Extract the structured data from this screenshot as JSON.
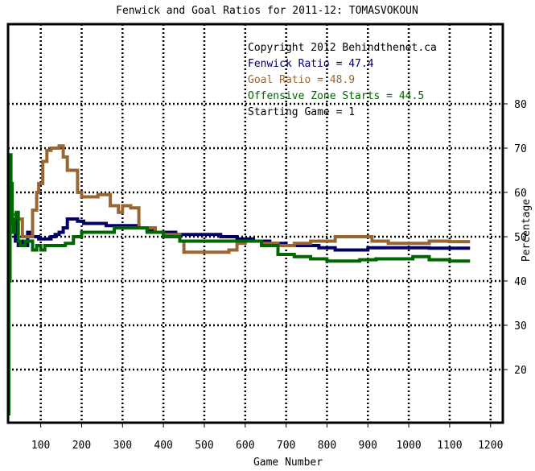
{
  "chart_data": {
    "type": "line",
    "title": "Fenwick and Goal Ratios for 2011-12: TOMASVOKOUN",
    "xlabel": "Game Number",
    "ylabel": "Percentage",
    "xlim": [
      20,
      1230
    ],
    "ylim": [
      8,
      98
    ],
    "x_ticks": [
      100,
      200,
      300,
      400,
      500,
      600,
      700,
      800,
      900,
      1000,
      1100,
      1200
    ],
    "y_ticks": [
      20,
      30,
      40,
      50,
      60,
      70,
      80
    ],
    "y_axis_side": "right",
    "grid": true,
    "legend_placement": "top-right",
    "annotations": {
      "copyright": "Copyright 2012 Behindthenet.ca",
      "fenwick": "Fenwick Ratio = 47.4",
      "goal": "Goal Ratio = 48.9",
      "ozone": "Offensive Zone Starts = 44.5",
      "starting_game": "Starting Game = 1"
    },
    "colors": {
      "fenwick": "#000066",
      "goal": "#996633",
      "ozone": "#006600",
      "grid": "#000000",
      "frame": "#000000"
    },
    "series": [
      {
        "key": "fenwick",
        "x": [
          30,
          38,
          45,
          52,
          60,
          68,
          75,
          85,
          95,
          105,
          115,
          125,
          135,
          145,
          155,
          165,
          175,
          190,
          205,
          220,
          240,
          260,
          280,
          300,
          320,
          340,
          360,
          380,
          400,
          430,
          460,
          500,
          540,
          580,
          620,
          660,
          700,
          740,
          780,
          820,
          860,
          900,
          950,
          1000,
          1050,
          1100,
          1150
        ],
        "y": [
          54,
          49,
          48,
          49,
          48,
          51,
          50,
          50,
          49.5,
          49.5,
          49.5,
          50,
          50.5,
          51,
          52,
          54,
          54,
          53.5,
          53,
          53,
          53,
          52.5,
          52.5,
          52.5,
          52.5,
          52,
          51.5,
          51,
          51,
          50.5,
          50.5,
          50.5,
          50,
          49.5,
          49,
          48.5,
          48,
          48,
          47.5,
          47,
          47,
          47.5,
          47.5,
          47.5,
          47.4,
          47.4,
          47.4
        ]
      },
      {
        "key": "goal",
        "x": [
          30,
          40,
          55,
          70,
          80,
          90,
          95,
          105,
          115,
          125,
          135,
          145,
          155,
          165,
          180,
          190,
          200,
          220,
          240,
          255,
          270,
          280,
          290,
          300,
          320,
          340,
          360,
          380,
          400,
          420,
          440,
          450,
          480,
          520,
          560,
          580,
          600,
          640,
          680,
          720,
          760,
          790,
          820,
          850,
          880,
          910,
          950,
          1000,
          1050,
          1100,
          1150
        ],
        "y": [
          55,
          54,
          50,
          50,
          56,
          60,
          62,
          67,
          69.5,
          70,
          70,
          70.5,
          68,
          65,
          65,
          60,
          59,
          59,
          59.5,
          59.5,
          57,
          57,
          55.5,
          57,
          56.5,
          52,
          52,
          51,
          50.5,
          50.5,
          49,
          46.5,
          46.5,
          46.5,
          47,
          48.5,
          49,
          48.5,
          48,
          48.5,
          49,
          49,
          50,
          50,
          50,
          49,
          48.5,
          48.5,
          49,
          48.9,
          48.9
        ]
      },
      {
        "key": "ozone",
        "x": [
          20,
          22,
          25,
          27,
          30,
          33,
          36,
          40,
          45,
          50,
          55,
          62,
          70,
          80,
          90,
          100,
          110,
          125,
          140,
          160,
          180,
          200,
          240,
          280,
          320,
          360,
          400,
          440,
          480,
          520,
          560,
          600,
          640,
          680,
          720,
          760,
          800,
          840,
          880,
          920,
          960,
          1000,
          1010,
          1050,
          1100,
          1150
        ],
        "y": [
          10,
          40,
          68.5,
          62,
          53,
          51,
          54,
          55.5,
          49,
          48,
          48,
          49,
          49,
          47,
          48,
          47,
          48,
          48,
          48,
          48.5,
          50,
          51,
          51,
          52,
          52,
          51,
          50,
          49,
          49,
          49,
          49,
          49,
          48,
          46,
          45.5,
          45,
          44.5,
          44.5,
          44.8,
          45,
          45,
          45,
          45.5,
          44.8,
          44.5,
          44.5
        ]
      }
    ]
  }
}
